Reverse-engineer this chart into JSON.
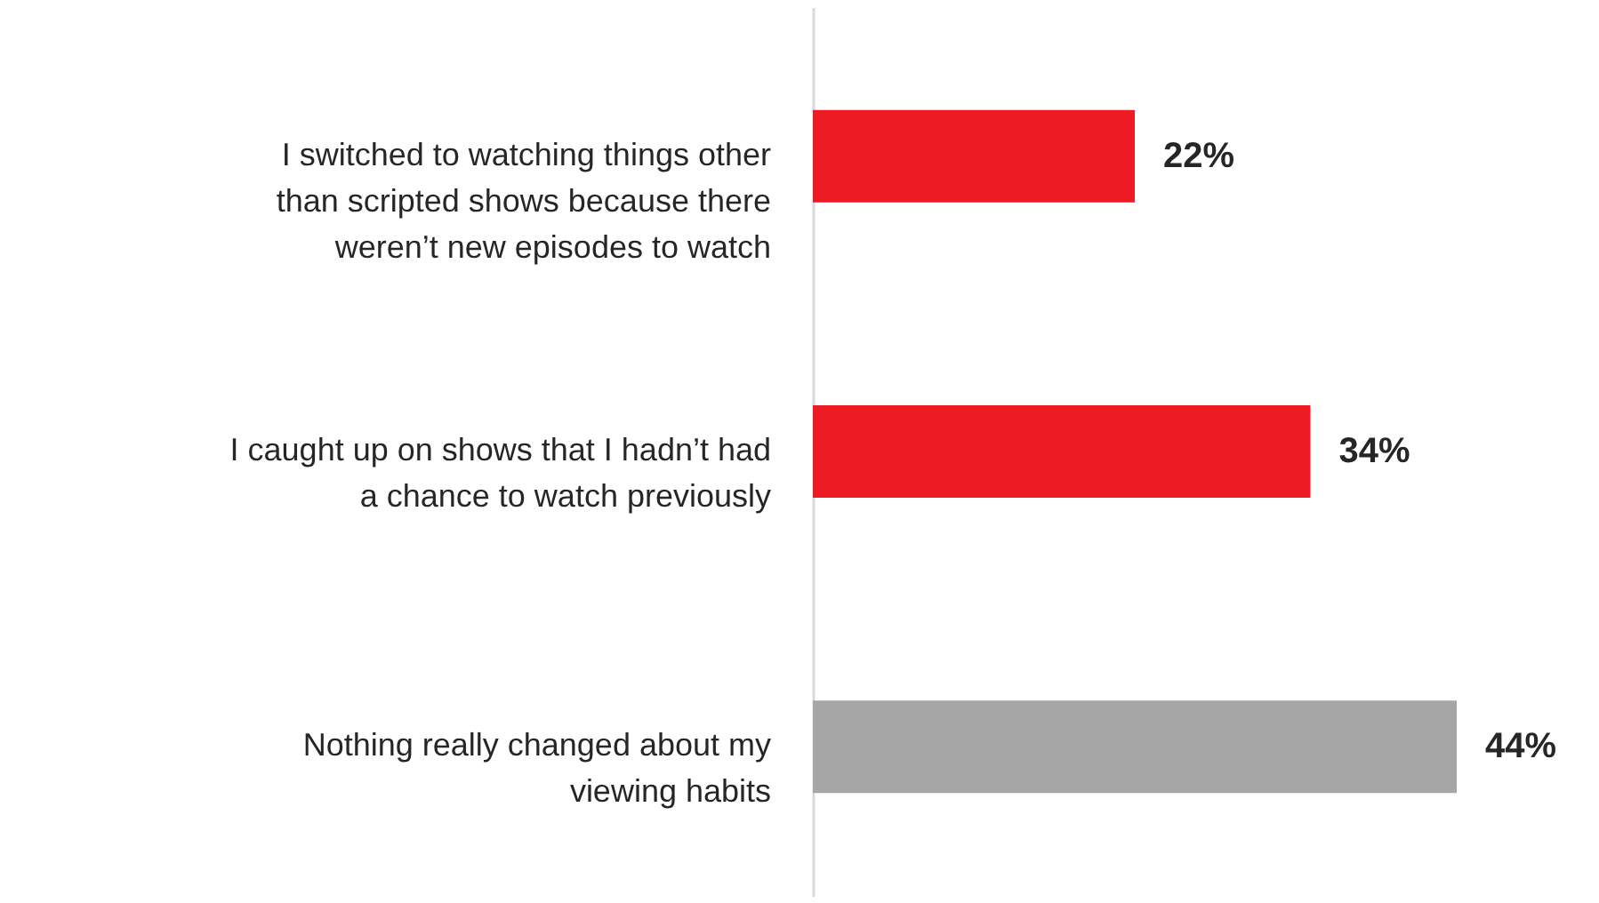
{
  "chart_data": {
    "type": "bar",
    "orientation": "horizontal",
    "value_labels": [
      "22%",
      "34%",
      "44%"
    ],
    "categories": [
      "I switched to watching things other than scripted shows because there weren’t new episodes to watch",
      "I caught up on shows that I hadn’t had a chance to watch previously",
      "Nothing really changed about my viewing habits"
    ],
    "values": [
      22,
      34,
      44
    ],
    "colors": [
      "#ed1c24",
      "#ed1c24",
      "#a6a6a6"
    ]
  }
}
